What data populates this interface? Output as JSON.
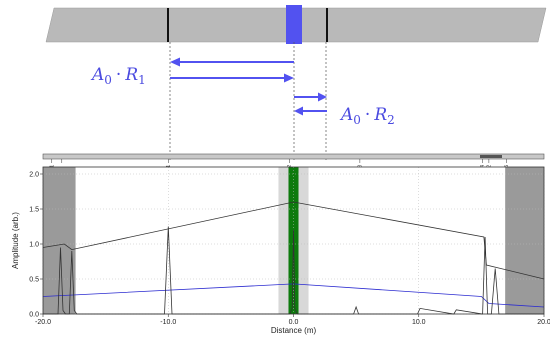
{
  "diagram": {
    "fiber_colors": {
      "body": "#b9b9b9",
      "event": "#111111",
      "marker": "#5252f0",
      "arrow": "#5252f0"
    },
    "label_left": {
      "base": "A",
      "sub0": "0",
      "dot": "·",
      "r": "R",
      "sub1": "1"
    },
    "label_right": {
      "base": "A",
      "sub0": "0",
      "dot": "·",
      "r": "R",
      "sub1": "2"
    }
  },
  "chart_data": {
    "type": "line",
    "xlabel": "Distance (m)",
    "ylabel": "Amplitude (arb.)",
    "xlim": [
      -20.0,
      20.0
    ],
    "ylim": [
      0.0,
      2.1
    ],
    "x_ticks": [
      {
        "value": -20.0,
        "label": "-20.0"
      },
      {
        "value": -10.0,
        "label": "-10.0"
      },
      {
        "value": 0.0,
        "label": "0.0"
      },
      {
        "value": 10.0,
        "label": "10.0"
      },
      {
        "value": 20.0,
        "label": "20.0"
      }
    ],
    "y_ticks": [
      {
        "value": 0.0,
        "label": "0.0"
      },
      {
        "value": 0.5,
        "label": "0.5"
      },
      {
        "value": 1.0,
        "label": "1.0"
      },
      {
        "value": 1.5,
        "label": "1.5"
      },
      {
        "value": 2.0,
        "label": "2.0"
      }
    ],
    "grid": true,
    "shaded_regions": [
      {
        "x0": -20.0,
        "x1": -17.4,
        "color": "#9a9a9a"
      },
      {
        "x0": 16.9,
        "x1": 20.0,
        "color": "#9a9a9a"
      },
      {
        "x0": -1.2,
        "x1": 1.2,
        "color": "#d8d8d8"
      }
    ],
    "center_marker": {
      "x0": -0.4,
      "x1": 0.4,
      "color": "#0d7a0d"
    },
    "series": [
      {
        "color": "#333333",
        "x": [
          -20.0,
          -18.3,
          -17.7,
          0.0,
          15.2,
          15.4,
          20.0
        ],
        "y": [
          0.95,
          1.0,
          0.92,
          1.6,
          1.1,
          0.7,
          0.5
        ]
      },
      {
        "color": "#2b2bd0",
        "x": [
          -20.0,
          0.0,
          15.0,
          15.6,
          20.0
        ],
        "y": [
          0.25,
          0.43,
          0.25,
          0.15,
          0.1
        ]
      },
      {
        "color": "#333333",
        "x": [
          -20,
          -18.8,
          -18.6,
          -18.4,
          -18.2,
          -17.9,
          -17.7,
          -17.5,
          -17.3,
          -15,
          -10.3,
          -10.0,
          -9.7,
          -5,
          -0.3,
          -0.1,
          0.0,
          0.1,
          0.3,
          4.8,
          5.0,
          5.2,
          9.9,
          10.1,
          12.8,
          13.0,
          15.1,
          15.3,
          15.5,
          15.8,
          16.1,
          16.4,
          20
        ],
        "y": [
          0.0,
          0.0,
          0.95,
          0.05,
          0.0,
          0.0,
          0.9,
          0.05,
          0.0,
          0.0,
          0.0,
          1.25,
          0.0,
          0.0,
          0.0,
          0.08,
          1.2,
          0.08,
          0.0,
          0.0,
          0.1,
          0.0,
          0.0,
          0.08,
          0.0,
          0.06,
          0.0,
          1.1,
          0.0,
          0.0,
          0.65,
          0.0,
          0.0
        ]
      }
    ],
    "events": [
      {
        "x": -19.3,
        "label": "B1"
      },
      {
        "x": -18.5,
        "label": "C"
      },
      {
        "x": -10.0,
        "label": "E1"
      },
      {
        "x": -0.3,
        "label": "E2"
      },
      {
        "x": 5.3,
        "label": "E3"
      },
      {
        "x": 15.1,
        "label": "E4"
      },
      {
        "x": 15.6,
        "label": "B2"
      },
      {
        "x": 17.0,
        "label": "E5"
      }
    ]
  }
}
